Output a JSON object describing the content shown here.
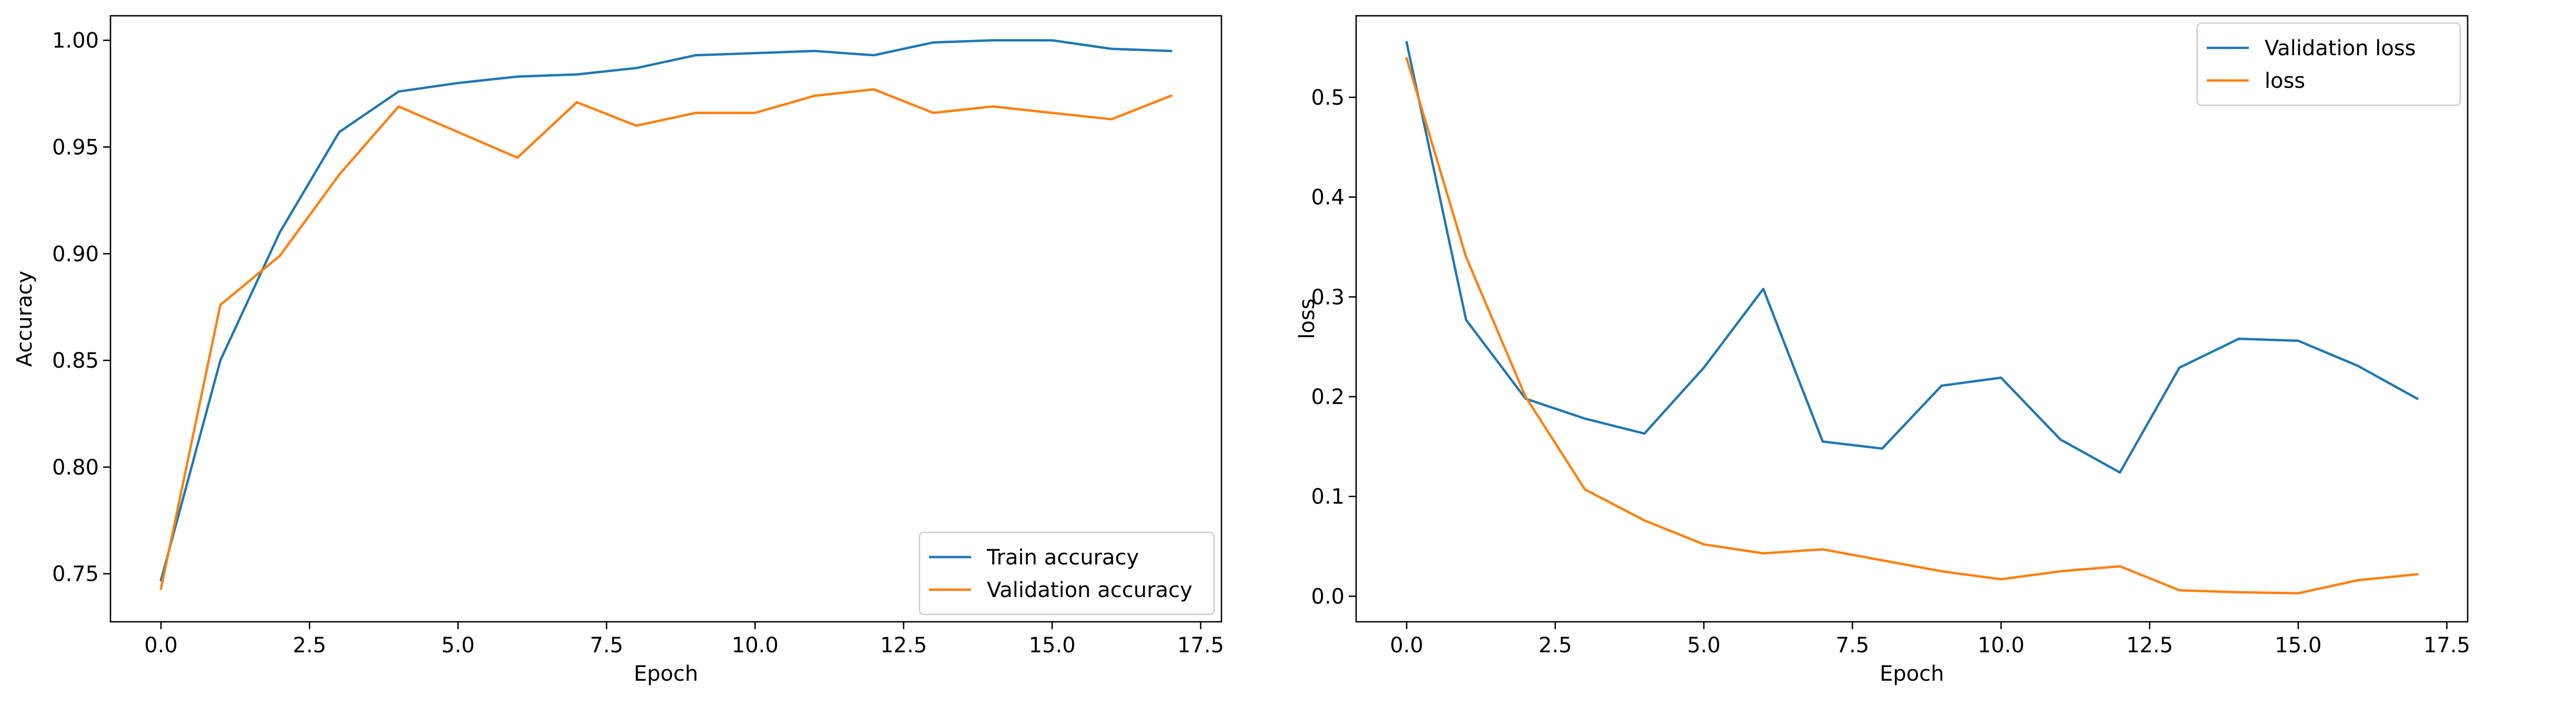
{
  "colors": {
    "blue": "#1f77b4",
    "orange": "#ff7f0e"
  },
  "chart_data": [
    {
      "type": "line",
      "title": "",
      "xlabel": "Epoch",
      "ylabel": "Accuracy",
      "xlim": [
        -0.85,
        17.85
      ],
      "ylim": [
        0.7275,
        1.0115
      ],
      "xticks": [
        0.0,
        2.5,
        5.0,
        7.5,
        10.0,
        12.5,
        15.0,
        17.5
      ],
      "xtick_labels": [
        "0.0",
        "2.5",
        "5.0",
        "7.5",
        "10.0",
        "12.5",
        "15.0",
        "17.5"
      ],
      "yticks": [
        0.75,
        0.8,
        0.85,
        0.9,
        0.95,
        1.0
      ],
      "ytick_labels": [
        "0.75",
        "0.80",
        "0.85",
        "0.90",
        "0.95",
        "1.00"
      ],
      "grid": false,
      "legend_position": "lower-right",
      "x": [
        0,
        1,
        2,
        3,
        4,
        5,
        6,
        7,
        8,
        9,
        10,
        11,
        12,
        13,
        14,
        15,
        16,
        17
      ],
      "series": [
        {
          "name": "Train accuracy",
          "color": "#1f77b4",
          "values": [
            0.747,
            0.85,
            0.91,
            0.957,
            0.976,
            0.98,
            0.983,
            0.984,
            0.987,
            0.993,
            0.994,
            0.995,
            0.993,
            0.999,
            1.0,
            1.0,
            0.996,
            0.995
          ]
        },
        {
          "name": "Validation accuracy",
          "color": "#ff7f0e",
          "values": [
            0.743,
            0.876,
            0.899,
            0.937,
            0.969,
            0.957,
            0.945,
            0.971,
            0.96,
            0.966,
            0.966,
            0.974,
            0.977,
            0.966,
            0.969,
            0.966,
            0.963,
            0.974
          ]
        }
      ]
    },
    {
      "type": "line",
      "title": "",
      "xlabel": "Epoch",
      "ylabel": "loss",
      "xlim": [
        -0.85,
        17.85
      ],
      "ylim": [
        -0.0256,
        0.5817
      ],
      "xticks": [
        0.0,
        2.5,
        5.0,
        7.5,
        10.0,
        12.5,
        15.0,
        17.5
      ],
      "xtick_labels": [
        "0.0",
        "2.5",
        "5.0",
        "7.5",
        "10.0",
        "12.5",
        "15.0",
        "17.5"
      ],
      "yticks": [
        0.0,
        0.1,
        0.2,
        0.3,
        0.4,
        0.5
      ],
      "ytick_labels": [
        "0.0",
        "0.1",
        "0.2",
        "0.3",
        "0.4",
        "0.5"
      ],
      "grid": false,
      "legend_position": "upper-right",
      "x": [
        0,
        1,
        2,
        3,
        4,
        5,
        6,
        7,
        8,
        9,
        10,
        11,
        12,
        13,
        14,
        15,
        16,
        17
      ],
      "series": [
        {
          "name": "Validation loss",
          "color": "#1f77b4",
          "values": [
            0.555,
            0.277,
            0.198,
            0.178,
            0.163,
            0.229,
            0.308,
            0.155,
            0.148,
            0.211,
            0.219,
            0.157,
            0.124,
            0.229,
            0.258,
            0.256,
            0.231,
            0.198
          ]
        },
        {
          "name": "loss",
          "color": "#ff7f0e",
          "values": [
            0.539,
            0.34,
            0.2,
            0.107,
            0.076,
            0.052,
            0.043,
            0.047,
            0.036,
            0.025,
            0.017,
            0.025,
            0.03,
            0.006,
            0.004,
            0.003,
            0.016,
            0.022
          ]
        }
      ]
    }
  ]
}
